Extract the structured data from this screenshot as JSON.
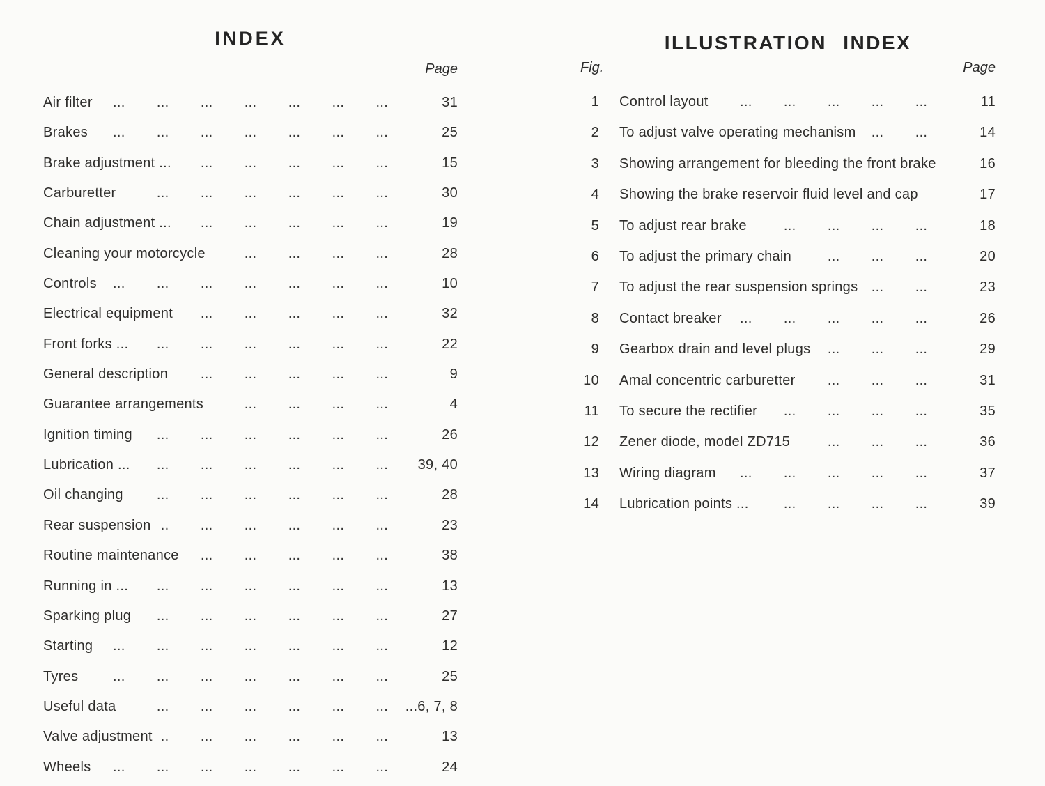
{
  "colors": {
    "paper": "#fbfbf9",
    "ink": "#2e2d2b",
    "title_ink": "#242424"
  },
  "index": {
    "title": "INDEX",
    "page_header": "Page",
    "entries": [
      {
        "label": "Air filter",
        "page": "31"
      },
      {
        "label": "Brakes",
        "page": "25"
      },
      {
        "label": "Brake adjustment ...",
        "page": "15"
      },
      {
        "label": "Carburetter",
        "page": "30"
      },
      {
        "label": "Chain adjustment ...",
        "page": "19"
      },
      {
        "label": "Cleaning your motorcycle",
        "page": "28"
      },
      {
        "label": "Controls",
        "page": "10"
      },
      {
        "label": "Electrical equipment",
        "page": "32"
      },
      {
        "label": "Front forks ...",
        "page": "22"
      },
      {
        "label": "General description",
        "page": "9"
      },
      {
        "label": "Guarantee arrangements",
        "page": "4"
      },
      {
        "label": "Ignition timing",
        "page": "26"
      },
      {
        "label": "Lubrication ...",
        "page": "39, 40"
      },
      {
        "label": "Oil changing",
        "page": "28"
      },
      {
        "label": "Rear suspension",
        "page": "23"
      },
      {
        "label": "Routine maintenance",
        "page": "38"
      },
      {
        "label": "Running in ...",
        "page": "13"
      },
      {
        "label": "Sparking plug",
        "page": "27"
      },
      {
        "label": "Starting",
        "page": "12"
      },
      {
        "label": "Tyres",
        "page": "25"
      },
      {
        "label": "Useful data",
        "page": "...6, 7, 8"
      },
      {
        "label": "Valve adjustment",
        "page": "13"
      },
      {
        "label": "Wheels",
        "page": "24"
      }
    ]
  },
  "illustration_index": {
    "title": "ILLUSTRATION INDEX",
    "fig_header": "Fig.",
    "page_header": "Page",
    "entries": [
      {
        "fig": "1",
        "label": "Control layout",
        "page": "11"
      },
      {
        "fig": "2",
        "label": "To adjust valve operating mechanism",
        "page": "14"
      },
      {
        "fig": "3",
        "label": "Showing arrangement for bleeding the front brake",
        "page": "16"
      },
      {
        "fig": "4",
        "label": "Showing the brake reservoir fluid level and cap",
        "page": "17"
      },
      {
        "fig": "5",
        "label": "To adjust rear brake",
        "page": "18"
      },
      {
        "fig": "6",
        "label": "To adjust the primary chain",
        "page": "20"
      },
      {
        "fig": "7",
        "label": "To adjust the rear suspension springs",
        "page": "23"
      },
      {
        "fig": "8",
        "label": "Contact breaker",
        "page": "26"
      },
      {
        "fig": "9",
        "label": "Gearbox drain and level plugs",
        "page": "29"
      },
      {
        "fig": "10",
        "label": "Amal concentric carburetter",
        "page": "31"
      },
      {
        "fig": "11",
        "label": "To secure the rectifier",
        "page": "35"
      },
      {
        "fig": "12",
        "label": "Zener diode, model ZD715",
        "page": "36"
      },
      {
        "fig": "13",
        "label": "Wiring diagram",
        "page": "37"
      },
      {
        "fig": "14",
        "label": "Lubrication points ...",
        "page": "39"
      }
    ]
  }
}
